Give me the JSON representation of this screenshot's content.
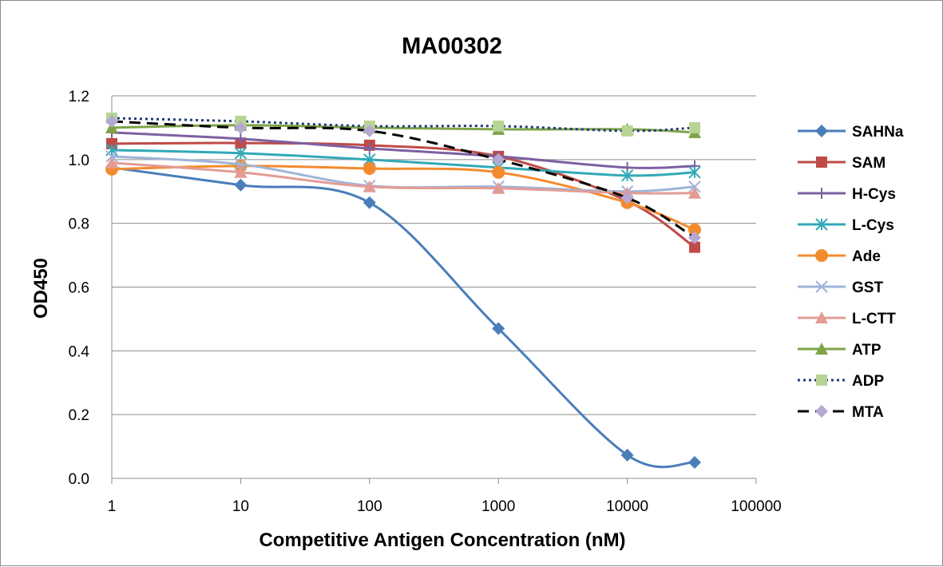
{
  "chart_data": {
    "type": "line",
    "title": "MA00302",
    "xlabel": "Competitive Antigen Concentration (nM)",
    "ylabel": "OD450",
    "x_scale": "log",
    "xlim": [
      1,
      100000
    ],
    "ylim": [
      0,
      1.2
    ],
    "x_ticks": [
      "1",
      "10",
      "100",
      "1000",
      "10000",
      "100000"
    ],
    "y_ticks": [
      "0.0",
      "0.2",
      "0.4",
      "0.6",
      "0.8",
      "1.0",
      "1.2"
    ],
    "grid": "horizontal",
    "legend_position": "right",
    "x": [
      1,
      10,
      100,
      1000,
      10000,
      33333
    ],
    "series": [
      {
        "name": "SAHNa",
        "values": [
          0.975,
          0.92,
          0.865,
          0.47,
          0.073,
          0.05
        ],
        "color": "#4a7ebb",
        "marker": "diamond",
        "dash": "solid"
      },
      {
        "name": "SAM",
        "values": [
          1.05,
          1.052,
          1.045,
          1.01,
          0.87,
          0.725
        ],
        "color": "#be4b48",
        "marker": "square",
        "dash": "solid"
      },
      {
        "name": "H-Cys",
        "values": [
          1.085,
          1.065,
          1.035,
          1.01,
          0.975,
          0.98
        ],
        "color": "#7d60a0",
        "marker": "plus",
        "dash": "solid"
      },
      {
        "name": "L-Cys",
        "values": [
          1.03,
          1.02,
          1.0,
          0.975,
          0.95,
          0.96
        ],
        "color": "#31a9b8",
        "marker": "star",
        "dash": "solid"
      },
      {
        "name": "Ade",
        "values": [
          0.97,
          0.98,
          0.972,
          0.96,
          0.865,
          0.78
        ],
        "color": "#f38b2e",
        "marker": "circle",
        "dash": "solid"
      },
      {
        "name": "GST",
        "values": [
          1.01,
          0.985,
          0.918,
          0.915,
          0.9,
          0.915
        ],
        "color": "#a0b4d8",
        "marker": "x",
        "dash": "solid"
      },
      {
        "name": "L-CTT",
        "values": [
          0.99,
          0.96,
          0.915,
          0.91,
          0.895,
          0.895
        ],
        "color": "#e39c94",
        "marker": "triangle",
        "dash": "solid"
      },
      {
        "name": "ATP",
        "values": [
          1.1,
          1.108,
          1.1,
          1.095,
          1.095,
          1.085
        ],
        "color": "#7fa347",
        "marker": "triangle",
        "dash": "solid"
      },
      {
        "name": "ADP",
        "values": [
          1.13,
          1.12,
          1.105,
          1.105,
          1.09,
          1.1
        ],
        "color": "#1f3a7a",
        "marker": "square-light",
        "markerColor": "#b8d494",
        "dash": "dotted"
      },
      {
        "name": "MTA",
        "values": [
          1.12,
          1.1,
          1.09,
          1.0,
          0.88,
          0.755
        ],
        "color": "#000000",
        "marker": "diamond",
        "markerColor": "#b6a8d2",
        "dash": "dashed"
      }
    ]
  }
}
